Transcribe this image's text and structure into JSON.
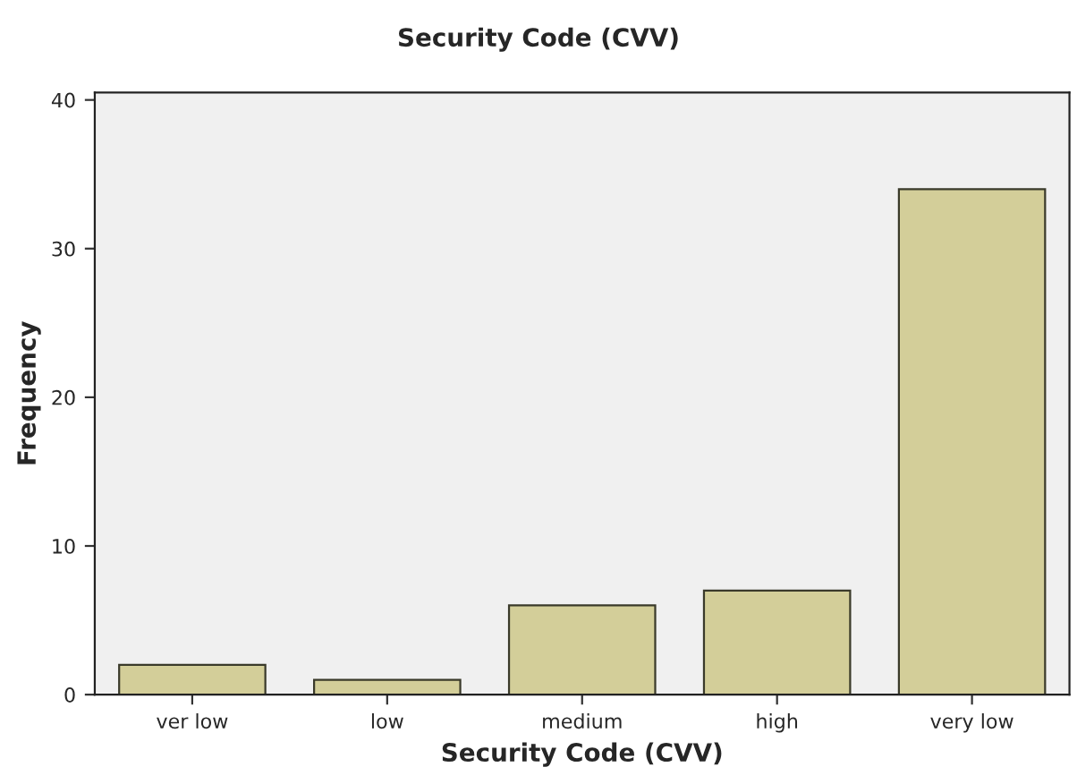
{
  "chart_data": {
    "type": "bar",
    "title": "Security Code (CVV)",
    "xlabel": "Security Code (CVV)",
    "ylabel": "Frequency",
    "categories": [
      "ver low",
      "low",
      "medium",
      "high",
      "very low"
    ],
    "values": [
      2,
      1,
      6,
      7,
      34
    ],
    "color": "#d3ce99",
    "ylim": [
      0,
      40.5
    ],
    "yticks": [
      0,
      10,
      20,
      30,
      40
    ],
    "grid": false
  }
}
